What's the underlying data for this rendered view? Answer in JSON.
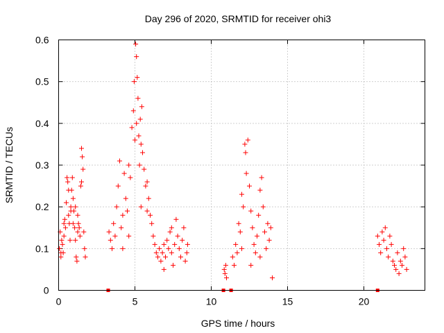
{
  "chart_data": {
    "type": "scatter",
    "title": "Day 296 of 2020, SRMTID for receiver ohi3",
    "xlabel": "GPS time / hours",
    "ylabel": "SRMTID / TECUs",
    "xlim": [
      0,
      24
    ],
    "ylim": [
      0,
      0.6
    ],
    "xticks": [
      "0",
      "5",
      "10",
      "15",
      "20"
    ],
    "yticks": [
      "0",
      "0.1",
      "0.2",
      "0.3",
      "0.4",
      "0.5",
      "0.6"
    ],
    "grid": true,
    "marker": "+",
    "color": "#ff0000",
    "gap_markers_x": [
      3.25,
      10.8,
      11.3,
      20.9
    ],
    "series": [
      {
        "name": "ohi3",
        "points": [
          [
            0.05,
            0.1
          ],
          [
            0.1,
            0.14
          ],
          [
            0.15,
            0.09
          ],
          [
            0.2,
            0.12
          ],
          [
            0.25,
            0.11
          ],
          [
            0.3,
            0.09
          ],
          [
            0.35,
            0.13
          ],
          [
            0.4,
            0.17
          ],
          [
            0.45,
            0.15
          ],
          [
            0.5,
            0.21
          ],
          [
            0.55,
            0.27
          ],
          [
            0.6,
            0.26
          ],
          [
            0.65,
            0.18
          ],
          [
            0.7,
            0.16
          ],
          [
            0.75,
            0.12
          ],
          [
            0.8,
            0.2
          ],
          [
            0.85,
            0.24
          ],
          [
            0.9,
            0.27
          ],
          [
            0.95,
            0.22
          ],
          [
            1.0,
            0.19
          ],
          [
            1.05,
            0.15
          ],
          [
            1.1,
            0.12
          ],
          [
            1.15,
            0.08
          ],
          [
            1.2,
            0.07
          ],
          [
            1.25,
            0.14
          ],
          [
            1.3,
            0.16
          ],
          [
            1.35,
            0.15
          ],
          [
            1.4,
            0.13
          ],
          [
            1.45,
            0.25
          ],
          [
            1.5,
            0.34
          ],
          [
            1.55,
            0.32
          ],
          [
            1.6,
            0.29
          ],
          [
            1.65,
            0.14
          ],
          [
            1.7,
            0.1
          ],
          [
            1.75,
            0.08
          ],
          [
            0.15,
            0.08
          ],
          [
            0.35,
            0.16
          ],
          [
            0.65,
            0.24
          ],
          [
            0.95,
            0.16
          ],
          [
            1.25,
            0.18
          ],
          [
            1.5,
            0.26
          ],
          [
            0.8,
            0.19
          ],
          [
            1.1,
            0.2
          ],
          [
            3.3,
            0.14
          ],
          [
            3.4,
            0.12
          ],
          [
            3.5,
            0.1
          ],
          [
            3.6,
            0.16
          ],
          [
            3.7,
            0.13
          ],
          [
            3.8,
            0.2
          ],
          [
            3.9,
            0.25
          ],
          [
            4.0,
            0.31
          ],
          [
            4.1,
            0.15
          ],
          [
            4.2,
            0.18
          ],
          [
            4.3,
            0.28
          ],
          [
            4.4,
            0.22
          ],
          [
            4.5,
            0.19
          ],
          [
            4.6,
            0.3
          ],
          [
            4.7,
            0.27
          ],
          [
            4.8,
            0.39
          ],
          [
            4.9,
            0.43
          ],
          [
            5.0,
            0.36
          ],
          [
            5.05,
            0.59
          ],
          [
            5.1,
            0.56
          ],
          [
            5.15,
            0.51
          ],
          [
            5.2,
            0.46
          ],
          [
            5.25,
            0.37
          ],
          [
            5.3,
            0.3
          ],
          [
            5.35,
            0.41
          ],
          [
            5.4,
            0.35
          ],
          [
            5.45,
            0.44
          ],
          [
            5.5,
            0.33
          ],
          [
            5.6,
            0.29
          ],
          [
            5.7,
            0.25
          ],
          [
            5.8,
            0.19
          ],
          [
            5.9,
            0.22
          ],
          [
            6.0,
            0.18
          ],
          [
            6.1,
            0.16
          ],
          [
            6.2,
            0.13
          ],
          [
            6.3,
            0.11
          ],
          [
            6.4,
            0.09
          ],
          [
            6.5,
            0.08
          ],
          [
            6.6,
            0.1
          ],
          [
            6.7,
            0.07
          ],
          [
            6.8,
            0.09
          ],
          [
            6.9,
            0.05
          ],
          [
            7.0,
            0.08
          ],
          [
            7.1,
            0.12
          ],
          [
            7.2,
            0.1
          ],
          [
            7.3,
            0.14
          ],
          [
            7.4,
            0.09
          ],
          [
            7.5,
            0.06
          ],
          [
            7.6,
            0.11
          ],
          [
            7.7,
            0.17
          ],
          [
            7.8,
            0.13
          ],
          [
            7.9,
            0.1
          ],
          [
            8.0,
            0.08
          ],
          [
            8.1,
            0.12
          ],
          [
            8.2,
            0.15
          ],
          [
            8.3,
            0.07
          ],
          [
            8.4,
            0.09
          ],
          [
            8.45,
            0.11
          ],
          [
            4.95,
            0.5
          ],
          [
            5.1,
            0.4
          ],
          [
            4.2,
            0.1
          ],
          [
            4.6,
            0.13
          ],
          [
            5.4,
            0.2
          ],
          [
            5.8,
            0.26
          ],
          [
            6.9,
            0.11
          ],
          [
            7.4,
            0.15
          ],
          [
            10.85,
            0.05
          ],
          [
            10.9,
            0.04
          ],
          [
            10.95,
            0.06
          ],
          [
            11.0,
            0.03
          ],
          [
            11.4,
            0.08
          ],
          [
            11.5,
            0.06
          ],
          [
            11.6,
            0.11
          ],
          [
            11.7,
            0.09
          ],
          [
            11.8,
            0.16
          ],
          [
            11.9,
            0.14
          ],
          [
            12.0,
            0.23
          ],
          [
            12.1,
            0.2
          ],
          [
            12.2,
            0.35
          ],
          [
            12.25,
            0.33
          ],
          [
            12.3,
            0.28
          ],
          [
            12.4,
            0.36
          ],
          [
            12.5,
            0.25
          ],
          [
            12.6,
            0.19
          ],
          [
            12.7,
            0.15
          ],
          [
            12.8,
            0.11
          ],
          [
            12.9,
            0.09
          ],
          [
            13.0,
            0.13
          ],
          [
            13.1,
            0.18
          ],
          [
            13.2,
            0.24
          ],
          [
            13.3,
            0.27
          ],
          [
            13.4,
            0.2
          ],
          [
            13.5,
            0.14
          ],
          [
            13.6,
            0.1
          ],
          [
            13.7,
            0.16
          ],
          [
            13.8,
            0.12
          ],
          [
            13.9,
            0.15
          ],
          [
            14.0,
            0.03
          ],
          [
            12.0,
            0.1
          ],
          [
            12.6,
            0.06
          ],
          [
            13.2,
            0.08
          ],
          [
            20.9,
            0.13
          ],
          [
            21.0,
            0.11
          ],
          [
            21.1,
            0.09
          ],
          [
            21.2,
            0.14
          ],
          [
            21.3,
            0.12
          ],
          [
            21.4,
            0.15
          ],
          [
            21.5,
            0.1
          ],
          [
            21.6,
            0.08
          ],
          [
            21.7,
            0.13
          ],
          [
            21.8,
            0.11
          ],
          [
            21.9,
            0.07
          ],
          [
            22.0,
            0.06
          ],
          [
            22.1,
            0.05
          ],
          [
            22.2,
            0.09
          ],
          [
            22.3,
            0.04
          ],
          [
            22.4,
            0.07
          ],
          [
            22.5,
            0.06
          ],
          [
            22.6,
            0.1
          ],
          [
            22.7,
            0.08
          ],
          [
            22.8,
            0.05
          ]
        ]
      }
    ]
  }
}
